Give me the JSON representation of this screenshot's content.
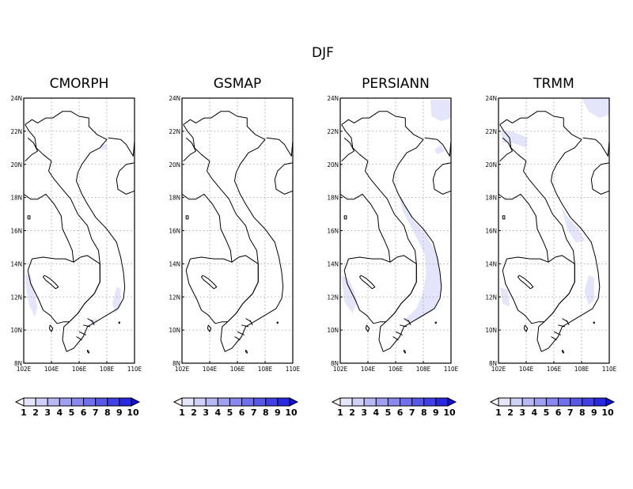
{
  "figure": {
    "title": "DJF",
    "panels": [
      {
        "title": "CMORPH"
      },
      {
        "title": "GSMAP"
      },
      {
        "title": "PERSIANN"
      },
      {
        "title": "TRMM"
      }
    ],
    "lon_ticks": [
      "102E",
      "104E",
      "106E",
      "108E",
      "110E"
    ],
    "lat_ticks": [
      "24N",
      "22N",
      "20N",
      "18N",
      "16N",
      "14N",
      "12N",
      "10N",
      "8N"
    ],
    "lon_range": [
      102,
      110
    ],
    "lat_range": [
      8,
      24
    ],
    "colorbar": {
      "labels": [
        "1",
        "2",
        "3",
        "4",
        "5",
        "6",
        "7",
        "8",
        "9",
        "10"
      ],
      "colors": [
        "#ffffff",
        "#e6e6fb",
        "#d0d0f8",
        "#b8b8f5",
        "#a0a0f2",
        "#8888ef",
        "#7070ec",
        "#5858e9",
        "#4040e6",
        "#2828e3",
        "#1010e0"
      ]
    },
    "grid": "dotted",
    "fill_color": "#e4e4fa"
  }
}
